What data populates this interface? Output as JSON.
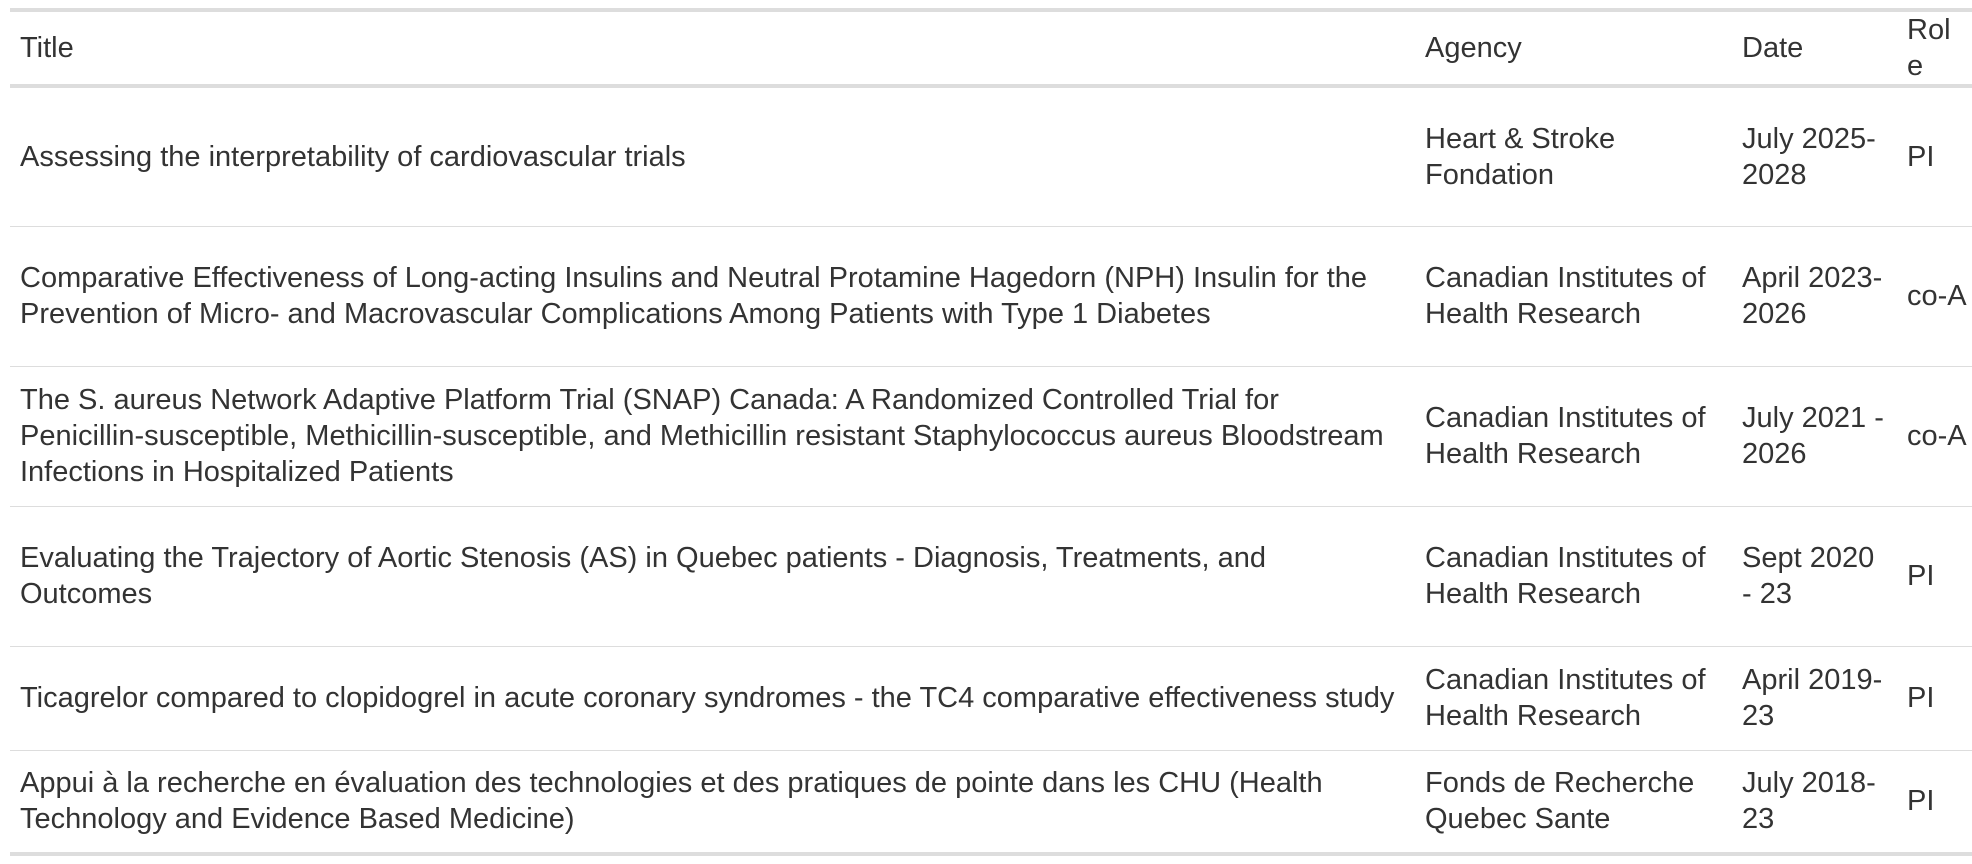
{
  "table": {
    "headers": {
      "title": "Title",
      "agency": "Agency",
      "date": "Date",
      "role": "Role"
    },
    "rows": [
      {
        "title": "Assessing the interpretability of cardiovascular trials",
        "agency": "Heart & Stroke Fondation",
        "date": "July 2025-2028",
        "role": "PI"
      },
      {
        "title": "Comparative Effectiveness of Long-acting Insulins and Neutral Protamine Hagedorn (NPH) Insulin for the Prevention of Micro- and Macrovascular Complications Among Patients with Type 1 Diabetes",
        "agency": "Canadian Institutes of Health Research",
        "date": "April 2023-2026",
        "role": "co-A"
      },
      {
        "title": "The S. aureus Network Adaptive Platform Trial (SNAP) Canada: A Randomized Controlled Trial for Penicillin-susceptible, Methicillin-susceptible, and Methicillin resistant Staphylococcus aureus Bloodstream Infections in Hospitalized Patients",
        "agency": "Canadian Institutes of Health Research",
        "date": "July 2021 - 2026",
        "role": "co-A"
      },
      {
        "title": "Evaluating the Trajectory of Aortic Stenosis (AS) in Quebec patients - Diagnosis, Treatments, and Outcomes",
        "agency": "Canadian Institutes of Health Research",
        "date": "Sept 2020 - 23",
        "role": "PI"
      },
      {
        "title": "Ticagrelor compared to clopidogrel in acute coronary syndromes - the TC4 comparative effectiveness study",
        "agency": "Canadian Institutes of Health Research",
        "date": "April 2019-23",
        "role": "PI"
      },
      {
        "title": "Appui à la recherche en évaluation des technologies et des pratiques de pointe dans les CHU (Health Technology and Evidence Based Medicine)",
        "agency": "Fonds de Recherche Quebec Sante",
        "date": "July 2018-23",
        "role": "PI"
      }
    ]
  }
}
